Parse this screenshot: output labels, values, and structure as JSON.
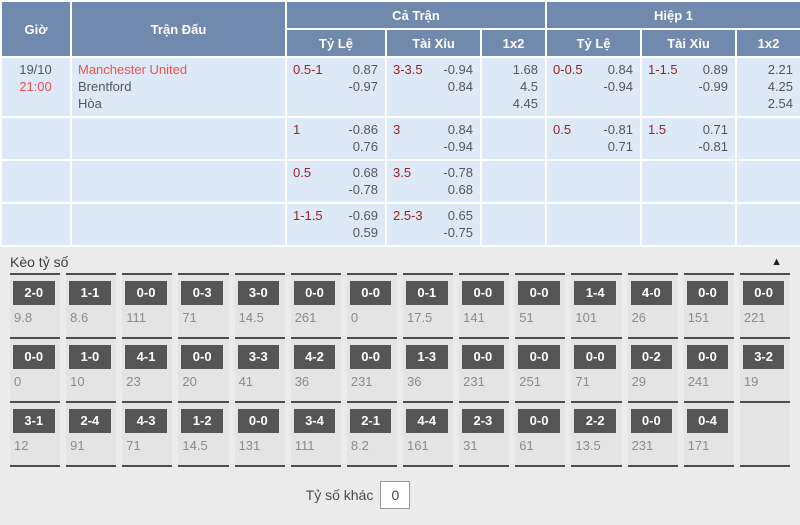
{
  "colors": {
    "header_blue": "#7289ae",
    "row_blue": "#dde9f7",
    "accent_red": "#f0514f",
    "handicap_red": "#9b2226",
    "badge_gray": "#555555",
    "section_bg": "#ebebeb"
  },
  "table": {
    "headers": {
      "time": "Giờ",
      "match": "Trận Đấu",
      "full_match": "Cả Trận",
      "half1": "Hiệp 1",
      "handicap": "Tỷ Lệ",
      "over_under": "Tài Xỉu",
      "one_x_two": "1x2"
    },
    "rows": [
      {
        "date": "19/10",
        "time": "21:00",
        "teams": [
          "Manchester United",
          "Brentford",
          "Hòa"
        ],
        "cells": {
          "ft_hc": {
            "hc": "0.5-1",
            "vals": [
              "0.87",
              "-0.97"
            ]
          },
          "ft_ou": {
            "hc": "3-3.5",
            "vals": [
              "-0.94",
              "0.84"
            ]
          },
          "ft_1x2": {
            "vals": [
              "1.68",
              "4.5",
              "4.45"
            ]
          },
          "h1_hc": {
            "hc": "0-0.5",
            "vals": [
              "0.84",
              "-0.94"
            ]
          },
          "h1_ou": {
            "hc": "1-1.5",
            "vals": [
              "0.89",
              "-0.99"
            ]
          },
          "h1_1x2": {
            "vals": [
              "2.21",
              "4.25",
              "2.54"
            ]
          }
        }
      },
      {
        "date": "",
        "time": "",
        "teams": [],
        "cells": {
          "ft_hc": {
            "hc": "1",
            "vals": [
              "-0.86",
              "0.76"
            ]
          },
          "ft_ou": {
            "hc": "3",
            "vals": [
              "0.84",
              "-0.94"
            ]
          },
          "ft_1x2": {
            "vals": []
          },
          "h1_hc": {
            "hc": "0.5",
            "vals": [
              "-0.81",
              "0.71"
            ]
          },
          "h1_ou": {
            "hc": "1.5",
            "vals": [
              "0.71",
              "-0.81"
            ]
          },
          "h1_1x2": {
            "vals": []
          }
        }
      },
      {
        "date": "",
        "time": "",
        "teams": [],
        "cells": {
          "ft_hc": {
            "hc": "0.5",
            "vals": [
              "0.68",
              "-0.78"
            ]
          },
          "ft_ou": {
            "hc": "3.5",
            "vals": [
              "-0.78",
              "0.68"
            ]
          },
          "ft_1x2": {
            "vals": []
          },
          "h1_hc": {
            "vals": []
          },
          "h1_ou": {
            "vals": []
          },
          "h1_1x2": {
            "vals": []
          }
        }
      },
      {
        "date": "",
        "time": "",
        "teams": [],
        "cells": {
          "ft_hc": {
            "hc": "1-1.5",
            "vals": [
              "-0.69",
              "0.59"
            ]
          },
          "ft_ou": {
            "hc": "2.5-3",
            "vals": [
              "0.65",
              "-0.75"
            ]
          },
          "ft_1x2": {
            "vals": []
          },
          "h1_hc": {
            "vals": []
          },
          "h1_ou": {
            "vals": []
          },
          "h1_1x2": {
            "vals": []
          }
        }
      }
    ]
  },
  "score_section": {
    "title": "Kèo tỷ số",
    "collapse_icon": "▲",
    "rows": [
      [
        {
          "score": "2-0",
          "odds": "9.8"
        },
        {
          "score": "1-1",
          "odds": "8.6"
        },
        {
          "score": "0-0",
          "odds": "111"
        },
        {
          "score": "0-3",
          "odds": "71"
        },
        {
          "score": "3-0",
          "odds": "14.5"
        },
        {
          "score": "0-0",
          "odds": "261"
        },
        {
          "score": "0-0",
          "odds": "0"
        },
        {
          "score": "0-1",
          "odds": "17.5"
        },
        {
          "score": "0-0",
          "odds": "141"
        },
        {
          "score": "0-0",
          "odds": "51"
        },
        {
          "score": "1-4",
          "odds": "101"
        },
        {
          "score": "4-0",
          "odds": "26"
        },
        {
          "score": "0-0",
          "odds": "151"
        },
        {
          "score": "0-0",
          "odds": "221"
        }
      ],
      [
        {
          "score": "0-0",
          "odds": "0"
        },
        {
          "score": "1-0",
          "odds": "10"
        },
        {
          "score": "4-1",
          "odds": "23"
        },
        {
          "score": "0-0",
          "odds": "20"
        },
        {
          "score": "3-3",
          "odds": "41"
        },
        {
          "score": "4-2",
          "odds": "36"
        },
        {
          "score": "0-0",
          "odds": "231"
        },
        {
          "score": "1-3",
          "odds": "36"
        },
        {
          "score": "0-0",
          "odds": "231"
        },
        {
          "score": "0-0",
          "odds": "251"
        },
        {
          "score": "0-0",
          "odds": "71"
        },
        {
          "score": "0-2",
          "odds": "29"
        },
        {
          "score": "0-0",
          "odds": "241"
        },
        {
          "score": "3-2",
          "odds": "19"
        }
      ],
      [
        {
          "score": "3-1",
          "odds": "12"
        },
        {
          "score": "2-4",
          "odds": "91"
        },
        {
          "score": "4-3",
          "odds": "71"
        },
        {
          "score": "1-2",
          "odds": "14.5"
        },
        {
          "score": "0-0",
          "odds": "131"
        },
        {
          "score": "3-4",
          "odds": "111"
        },
        {
          "score": "2-1",
          "odds": "8.2"
        },
        {
          "score": "4-4",
          "odds": "161"
        },
        {
          "score": "2-3",
          "odds": "31"
        },
        {
          "score": "0-0",
          "odds": "61"
        },
        {
          "score": "2-2",
          "odds": "13.5"
        },
        {
          "score": "0-0",
          "odds": "231"
        },
        {
          "score": "0-4",
          "odds": "171"
        }
      ]
    ],
    "other_score_label": "Tỷ số khác",
    "other_score_value": "0"
  }
}
